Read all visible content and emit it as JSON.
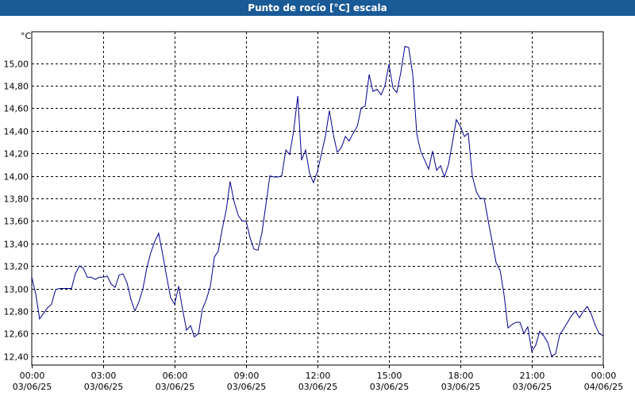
{
  "window": {
    "title": "Punto de rocío [°C] escala"
  },
  "colors": {
    "title_bar": "#1a5a96",
    "line": "#00008b",
    "grid": "#000000"
  },
  "chart_data": {
    "type": "line",
    "title": "Punto de rocío [°C] escala",
    "ylabel": "°C",
    "xlabel": "",
    "ylim": [
      12.32,
      15.28
    ],
    "xlim": [
      0,
      24
    ],
    "grid": true,
    "legend": "none",
    "y_ticks": [
      {
        "value": 12.4,
        "label": "12,40"
      },
      {
        "value": 12.6,
        "label": "12,60"
      },
      {
        "value": 12.8,
        "label": "12,80"
      },
      {
        "value": 13.0,
        "label": "13,00"
      },
      {
        "value": 13.2,
        "label": "13,20"
      },
      {
        "value": 13.4,
        "label": "13,40"
      },
      {
        "value": 13.6,
        "label": "13,60"
      },
      {
        "value": 13.8,
        "label": "13,80"
      },
      {
        "value": 14.0,
        "label": "14,00"
      },
      {
        "value": 14.2,
        "label": "14,20"
      },
      {
        "value": 14.4,
        "label": "14,40"
      },
      {
        "value": 14.6,
        "label": "14,60"
      },
      {
        "value": 14.8,
        "label": "14,80"
      },
      {
        "value": 15.0,
        "label": "15,00"
      }
    ],
    "x_ticks": [
      {
        "hour": 0,
        "time": "00:00",
        "date": "03/06/25"
      },
      {
        "hour": 3,
        "time": "03:00",
        "date": "03/06/25"
      },
      {
        "hour": 6,
        "time": "06:00",
        "date": "03/06/25"
      },
      {
        "hour": 9,
        "time": "09:00",
        "date": "03/06/25"
      },
      {
        "hour": 12,
        "time": "12:00",
        "date": "03/06/25"
      },
      {
        "hour": 15,
        "time": "15:00",
        "date": "03/06/25"
      },
      {
        "hour": 18,
        "time": "18:00",
        "date": "03/06/25"
      },
      {
        "hour": 21,
        "time": "21:00",
        "date": "03/06/25"
      },
      {
        "hour": 24,
        "time": "00:00",
        "date": "04/06/25"
      }
    ],
    "series": [
      {
        "x": [
          0,
          0.17,
          0.33,
          0.5,
          0.67,
          0.83,
          1,
          1.17,
          1.33,
          1.5,
          1.67,
          1.83,
          2,
          2.17,
          2.33,
          2.5,
          2.67,
          2.83,
          3,
          3.17,
          3.33,
          3.5,
          3.67,
          3.83,
          4,
          4.17,
          4.33,
          4.5,
          4.67,
          4.83,
          5,
          5.17,
          5.33,
          5.5,
          5.67,
          5.83,
          6,
          6.17,
          6.33,
          6.5,
          6.67,
          6.83,
          7,
          7.17,
          7.33,
          7.5,
          7.67,
          7.83,
          8,
          8.17,
          8.33,
          8.5,
          8.67,
          8.83,
          9,
          9.17,
          9.33,
          9.5,
          9.67,
          9.83,
          10,
          10.17,
          10.33,
          10.5,
          10.67,
          10.83,
          11,
          11.17,
          11.33,
          11.5,
          11.67,
          11.83,
          12,
          12.17,
          12.33,
          12.5,
          12.67,
          12.83,
          13,
          13.17,
          13.33,
          13.5,
          13.67,
          13.83,
          14,
          14.17,
          14.33,
          14.5,
          14.67,
          14.83,
          15,
          15.17,
          15.33,
          15.5,
          15.67,
          15.83,
          16,
          16.17,
          16.33,
          16.5,
          16.67,
          16.83,
          17,
          17.17,
          17.33,
          17.5,
          17.67,
          17.83,
          18,
          18.17,
          18.33,
          18.5,
          18.67,
          18.83,
          19,
          19.17,
          19.33,
          19.5,
          19.67,
          19.83,
          20,
          20.17,
          20.33,
          20.5,
          20.67,
          20.83,
          21,
          21.17,
          21.33,
          21.5,
          21.67,
          21.83,
          22,
          22.17,
          22.33,
          22.5,
          22.67,
          22.83,
          23,
          23.17,
          23.33,
          23.5,
          23.67,
          23.83,
          24
        ],
        "values": [
          13.1,
          12.95,
          12.73,
          12.78,
          12.83,
          12.86,
          12.99,
          13.0,
          13.0,
          13.0,
          13.0,
          13.13,
          13.2,
          13.18,
          13.1,
          13.1,
          13.08,
          13.1,
          13.1,
          13.11,
          13.04,
          13.01,
          13.12,
          13.13,
          13.05,
          12.9,
          12.8,
          12.88,
          13.0,
          13.18,
          13.32,
          13.42,
          13.49,
          13.3,
          13.1,
          12.92,
          12.86,
          13.02,
          12.82,
          12.63,
          12.67,
          12.57,
          12.6,
          12.82,
          12.9,
          13.02,
          13.28,
          13.33,
          13.53,
          13.7,
          13.95,
          13.77,
          13.65,
          13.6,
          13.6,
          13.45,
          13.35,
          13.34,
          13.5,
          13.74,
          14.0,
          13.99,
          13.99,
          14.0,
          14.23,
          14.19,
          14.4,
          14.71,
          14.14,
          14.23,
          14.02,
          13.94,
          14.04,
          14.2,
          14.35,
          14.58,
          14.36,
          14.21,
          14.25,
          14.35,
          14.31,
          14.38,
          14.44,
          14.6,
          14.62,
          14.9,
          14.75,
          14.77,
          14.72,
          14.8,
          14.99,
          14.78,
          14.74,
          14.92,
          15.15,
          15.14,
          14.9,
          14.37,
          14.22,
          14.14,
          14.06,
          14.22,
          14.05,
          14.09,
          13.99,
          14.1,
          14.3,
          14.5,
          14.44,
          14.35,
          14.38,
          14.0,
          13.86,
          13.8,
          13.8,
          13.6,
          13.42,
          13.23,
          13.16,
          12.95,
          12.65,
          12.68,
          12.7,
          12.7,
          12.6,
          12.66,
          12.44,
          12.5,
          12.62,
          12.58,
          12.52,
          12.4,
          12.42,
          12.59,
          12.64,
          12.7,
          12.76,
          12.8,
          12.74,
          12.8,
          12.84,
          12.77,
          12.67,
          12.6,
          12.58
        ]
      }
    ]
  }
}
